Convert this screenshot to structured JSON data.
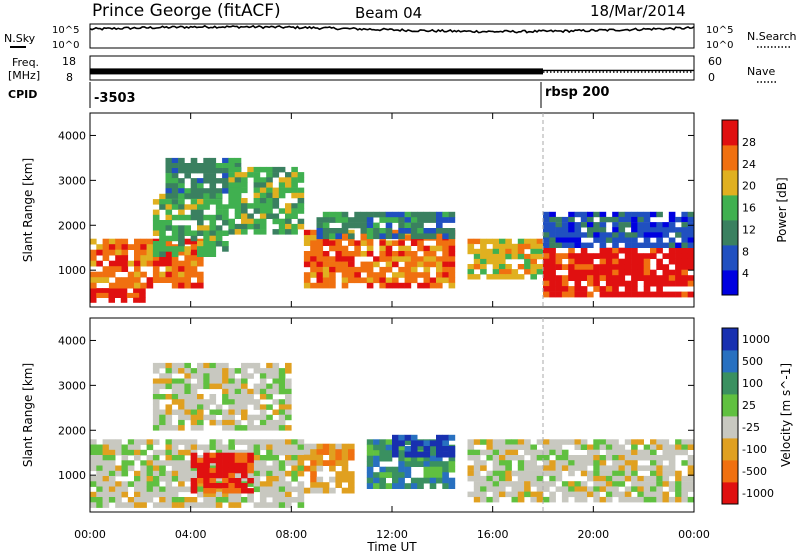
{
  "header": {
    "station": "Prince George (fitACF)",
    "beam": "Beam 04",
    "date": "18/Mar/2014"
  },
  "noise_panel": {
    "left_label": "N.Sky",
    "right_label": "N.Search",
    "left_ticks": [
      "10^5",
      "10^0"
    ],
    "right_ticks": [
      "10^5",
      "10^0"
    ]
  },
  "freq_panel": {
    "left_label_line1": "Freq.",
    "left_label_line2": "[MHz]",
    "left_ticks": [
      "18",
      "8"
    ],
    "right_label": "Nave",
    "right_ticks": [
      "60",
      "0"
    ]
  },
  "cpid_panel": {
    "label": "CPID",
    "entries": [
      {
        "start_hour": 0,
        "text": "-3503"
      },
      {
        "start_hour": 18,
        "text": "rbsp 200"
      }
    ]
  },
  "power_panel": {
    "ylabel": "Slant Range [km]",
    "yticks": [
      "4000",
      "3000",
      "2000",
      "1000"
    ],
    "colorbar_label": "Power [dB]",
    "colorbar_ticks": [
      "28",
      "24",
      "20",
      "16",
      "12",
      "8",
      "4"
    ],
    "colors": [
      "#0000e0",
      "#2050c0",
      "#3a8060",
      "#40b050",
      "#e0b020",
      "#f07010",
      "#e01010"
    ]
  },
  "velocity_panel": {
    "ylabel": "Slant Range [km]",
    "yticks": [
      "4000",
      "3000",
      "2000",
      "1000"
    ],
    "colorbar_label": "Velocity [m s^-1]",
    "colorbar_ticks": [
      "1000",
      "500",
      "100",
      "25",
      "-25",
      "-100",
      "-500",
      "-1000"
    ],
    "colors": [
      "#1830b0",
      "#2870c0",
      "#3a9060",
      "#60c040",
      "#c8c8c0",
      "#e0a020",
      "#f07010",
      "#e01010"
    ],
    "ground_scatter_color": "#c8c8c0"
  },
  "chart_data": {
    "type": "heatmap",
    "x_axis": {
      "label": "Time UT",
      "ticks": [
        "00:00",
        "04:00",
        "08:00",
        "12:00",
        "16:00",
        "20:00",
        "00:00"
      ],
      "range_hours": [
        0,
        24
      ]
    },
    "y_axis_range_km": [
      180,
      4500
    ],
    "noise_sky_log10_mean": 4.2,
    "frequency_mhz": 12,
    "nave_after_18h": 20,
    "power_scatter_regions": [
      {
        "t0": 0.0,
        "t1": 2.2,
        "r0": 280,
        "r1": 600,
        "level": 6
      },
      {
        "t0": 0.0,
        "t1": 4.5,
        "r0": 600,
        "r1": 1700,
        "level": 5
      },
      {
        "t0": 2.5,
        "t1": 5.5,
        "r0": 1300,
        "r1": 2700,
        "level": 3
      },
      {
        "t0": 3.0,
        "t1": 6.0,
        "r0": 2600,
        "r1": 3500,
        "level": 2
      },
      {
        "t0": 5.5,
        "t1": 8.5,
        "r0": 1800,
        "r1": 3300,
        "level": 3
      },
      {
        "t0": 8.5,
        "t1": 14.5,
        "r0": 600,
        "r1": 1900,
        "level": 5
      },
      {
        "t0": 9.0,
        "t1": 14.5,
        "r0": 1700,
        "r1": 2300,
        "level": 2
      },
      {
        "t0": 15.0,
        "t1": 18.0,
        "r0": 800,
        "r1": 1700,
        "level": 4
      },
      {
        "t0": 18.0,
        "t1": 24.0,
        "r0": 400,
        "r1": 1500,
        "level": 6
      },
      {
        "t0": 18.0,
        "t1": 24.0,
        "r0": 1500,
        "r1": 2300,
        "level": 1
      }
    ],
    "velocity_scatter_regions": [
      {
        "t0": 0.0,
        "t1": 8.5,
        "r0": 280,
        "r1": 1800,
        "class": 4
      },
      {
        "t0": 4.0,
        "t1": 6.5,
        "r0": 600,
        "r1": 1500,
        "class": 7
      },
      {
        "t0": 8.5,
        "t1": 10.5,
        "r0": 600,
        "r1": 1700,
        "class": 5
      },
      {
        "t0": 11.0,
        "t1": 14.5,
        "r0": 700,
        "r1": 1800,
        "class": 2
      },
      {
        "t0": 12.0,
        "t1": 14.5,
        "r0": 1400,
        "r1": 1900,
        "class": 0
      },
      {
        "t0": 15.0,
        "t1": 24.0,
        "r0": 400,
        "r1": 1800,
        "class": 4
      },
      {
        "t0": 2.5,
        "t1": 8.0,
        "r0": 2000,
        "r1": 3500,
        "class": 4
      }
    ]
  }
}
